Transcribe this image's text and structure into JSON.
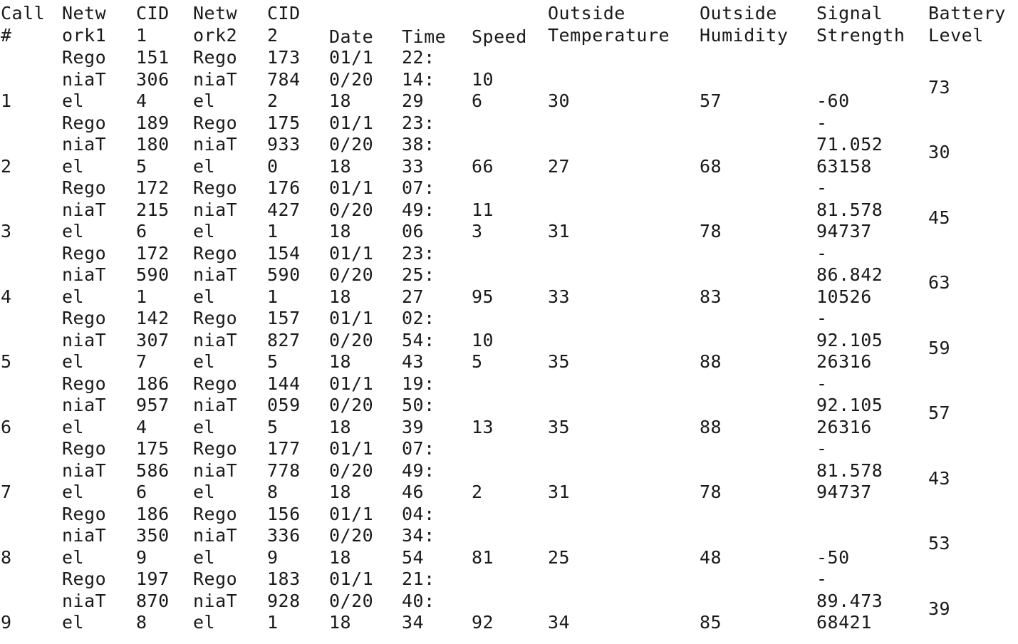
{
  "table": {
    "headers": [
      "Call #",
      "Network1",
      "CID 1",
      "Network2",
      "CID 2",
      "Date",
      "Time",
      "Speed",
      "Outside Temperature",
      "Outside Humidity",
      "Signal Strength",
      "Battery Level"
    ],
    "header_lines": [
      [
        "Call",
        "#"
      ],
      [
        "Netw",
        "ork1"
      ],
      [
        "CID",
        "1"
      ],
      [
        "Netw",
        "ork2"
      ],
      [
        "CID",
        "2"
      ],
      [
        "Date"
      ],
      [
        "Time"
      ],
      [
        "Speed"
      ],
      [
        "Outside",
        "Temperature"
      ],
      [
        "Outside",
        "Humidity"
      ],
      [
        "Signal",
        "Strength"
      ],
      [
        "Battery",
        "Level"
      ]
    ],
    "rows": [
      {
        "call": "1",
        "network1": "RegoniaTel",
        "cid1": "1513064",
        "network2": "RegoniaTel",
        "cid2": "1737842",
        "date": "01/10/2018",
        "time": "22:14:29",
        "speed": "106",
        "temperature": "30",
        "humidity": "57",
        "signal": "-60",
        "battery": "73"
      },
      {
        "call": "2",
        "network1": "RegoniaTel",
        "cid1": "1891805",
        "network2": "RegoniaTel",
        "cid2": "1759330",
        "date": "01/10/2018",
        "time": "23:38:33",
        "speed": "66",
        "temperature": "27",
        "humidity": "68",
        "signal": "-71.05263158",
        "battery": "30"
      },
      {
        "call": "3",
        "network1": "RegoniaTel",
        "cid1": "1722156",
        "network2": "RegoniaTel",
        "cid2": "1764271",
        "date": "01/10/2018",
        "time": "07:49:06",
        "speed": "113",
        "temperature": "31",
        "humidity": "78",
        "signal": "-81.57894737",
        "battery": "45"
      },
      {
        "call": "4",
        "network1": "RegoniaTel",
        "cid1": "1725901",
        "network2": "RegoniaTel",
        "cid2": "1545901",
        "date": "01/10/2018",
        "time": "23:25:27",
        "speed": "95",
        "temperature": "33",
        "humidity": "83",
        "signal": "-86.84210526",
        "battery": "63"
      },
      {
        "call": "5",
        "network1": "RegoniaTel",
        "cid1": "1423077",
        "network2": "RegoniaTel",
        "cid2": "1578275",
        "date": "01/10/2018",
        "time": "02:54:43",
        "speed": "105",
        "temperature": "35",
        "humidity": "88",
        "signal": "-92.10526316",
        "battery": "59"
      },
      {
        "call": "6",
        "network1": "RegoniaTel",
        "cid1": "1869574",
        "network2": "RegoniaTel",
        "cid2": "1440595",
        "date": "01/10/2018",
        "time": "19:50:39",
        "speed": "13",
        "temperature": "35",
        "humidity": "88",
        "signal": "-92.10526316",
        "battery": "57"
      },
      {
        "call": "7",
        "network1": "RegoniaTel",
        "cid1": "1755866",
        "network2": "RegoniaTel",
        "cid2": "1777788",
        "date": "01/10/2018",
        "time": "07:49:46",
        "speed": "2",
        "temperature": "31",
        "humidity": "78",
        "signal": "-81.57894737",
        "battery": "43"
      },
      {
        "call": "8",
        "network1": "RegoniaTel",
        "cid1": "1863509",
        "network2": "RegoniaTel",
        "cid2": "1563369",
        "date": "01/10/2018",
        "time": "04:34:54",
        "speed": "81",
        "temperature": "25",
        "humidity": "48",
        "signal": "-50",
        "battery": "53"
      },
      {
        "call": "9",
        "network1": "RegoniaTel",
        "cid1": "1978708",
        "network2": "RegoniaTel",
        "cid2": "1839281",
        "date": "01/10/2018",
        "time": "21:40:34",
        "speed": "92",
        "temperature": "34",
        "humidity": "85",
        "signal": "-89.47368421",
        "battery": "39"
      }
    ]
  }
}
